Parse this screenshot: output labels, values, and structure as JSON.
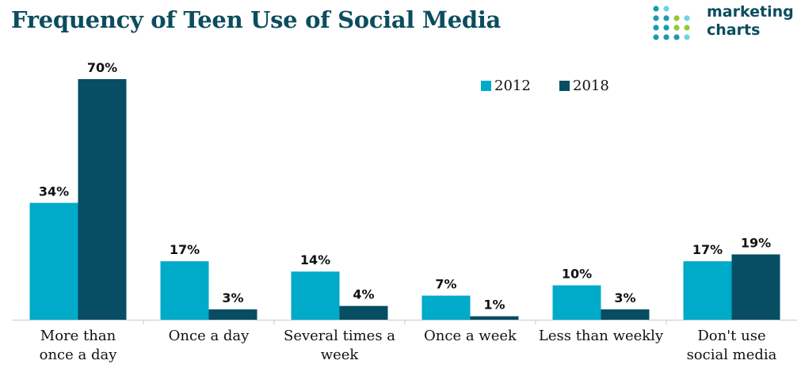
{
  "chart_data": {
    "type": "bar",
    "title": "Frequency of Teen Use of Social Media",
    "categories": [
      [
        "More than",
        "once a day"
      ],
      [
        "Once a day"
      ],
      [
        "Several times a",
        "week"
      ],
      [
        "Once a week"
      ],
      [
        "Less than weekly"
      ],
      [
        "Don't use",
        "social media"
      ]
    ],
    "series": [
      {
        "name": "2012",
        "color": "#00aac9",
        "values": [
          34,
          17,
          14,
          7,
          10,
          17
        ]
      },
      {
        "name": "2018",
        "color": "#074d63",
        "values": [
          70,
          3,
          4,
          1,
          3,
          19
        ]
      }
    ],
    "value_suffix": "%",
    "ylim": [
      0,
      70
    ],
    "legend": "top-right",
    "grid": false
  },
  "brand": {
    "line1": "marketing",
    "line2": "charts",
    "dot_colors": [
      "#1a9bb0",
      "#8ccc3c",
      "#6fd3e6"
    ]
  }
}
